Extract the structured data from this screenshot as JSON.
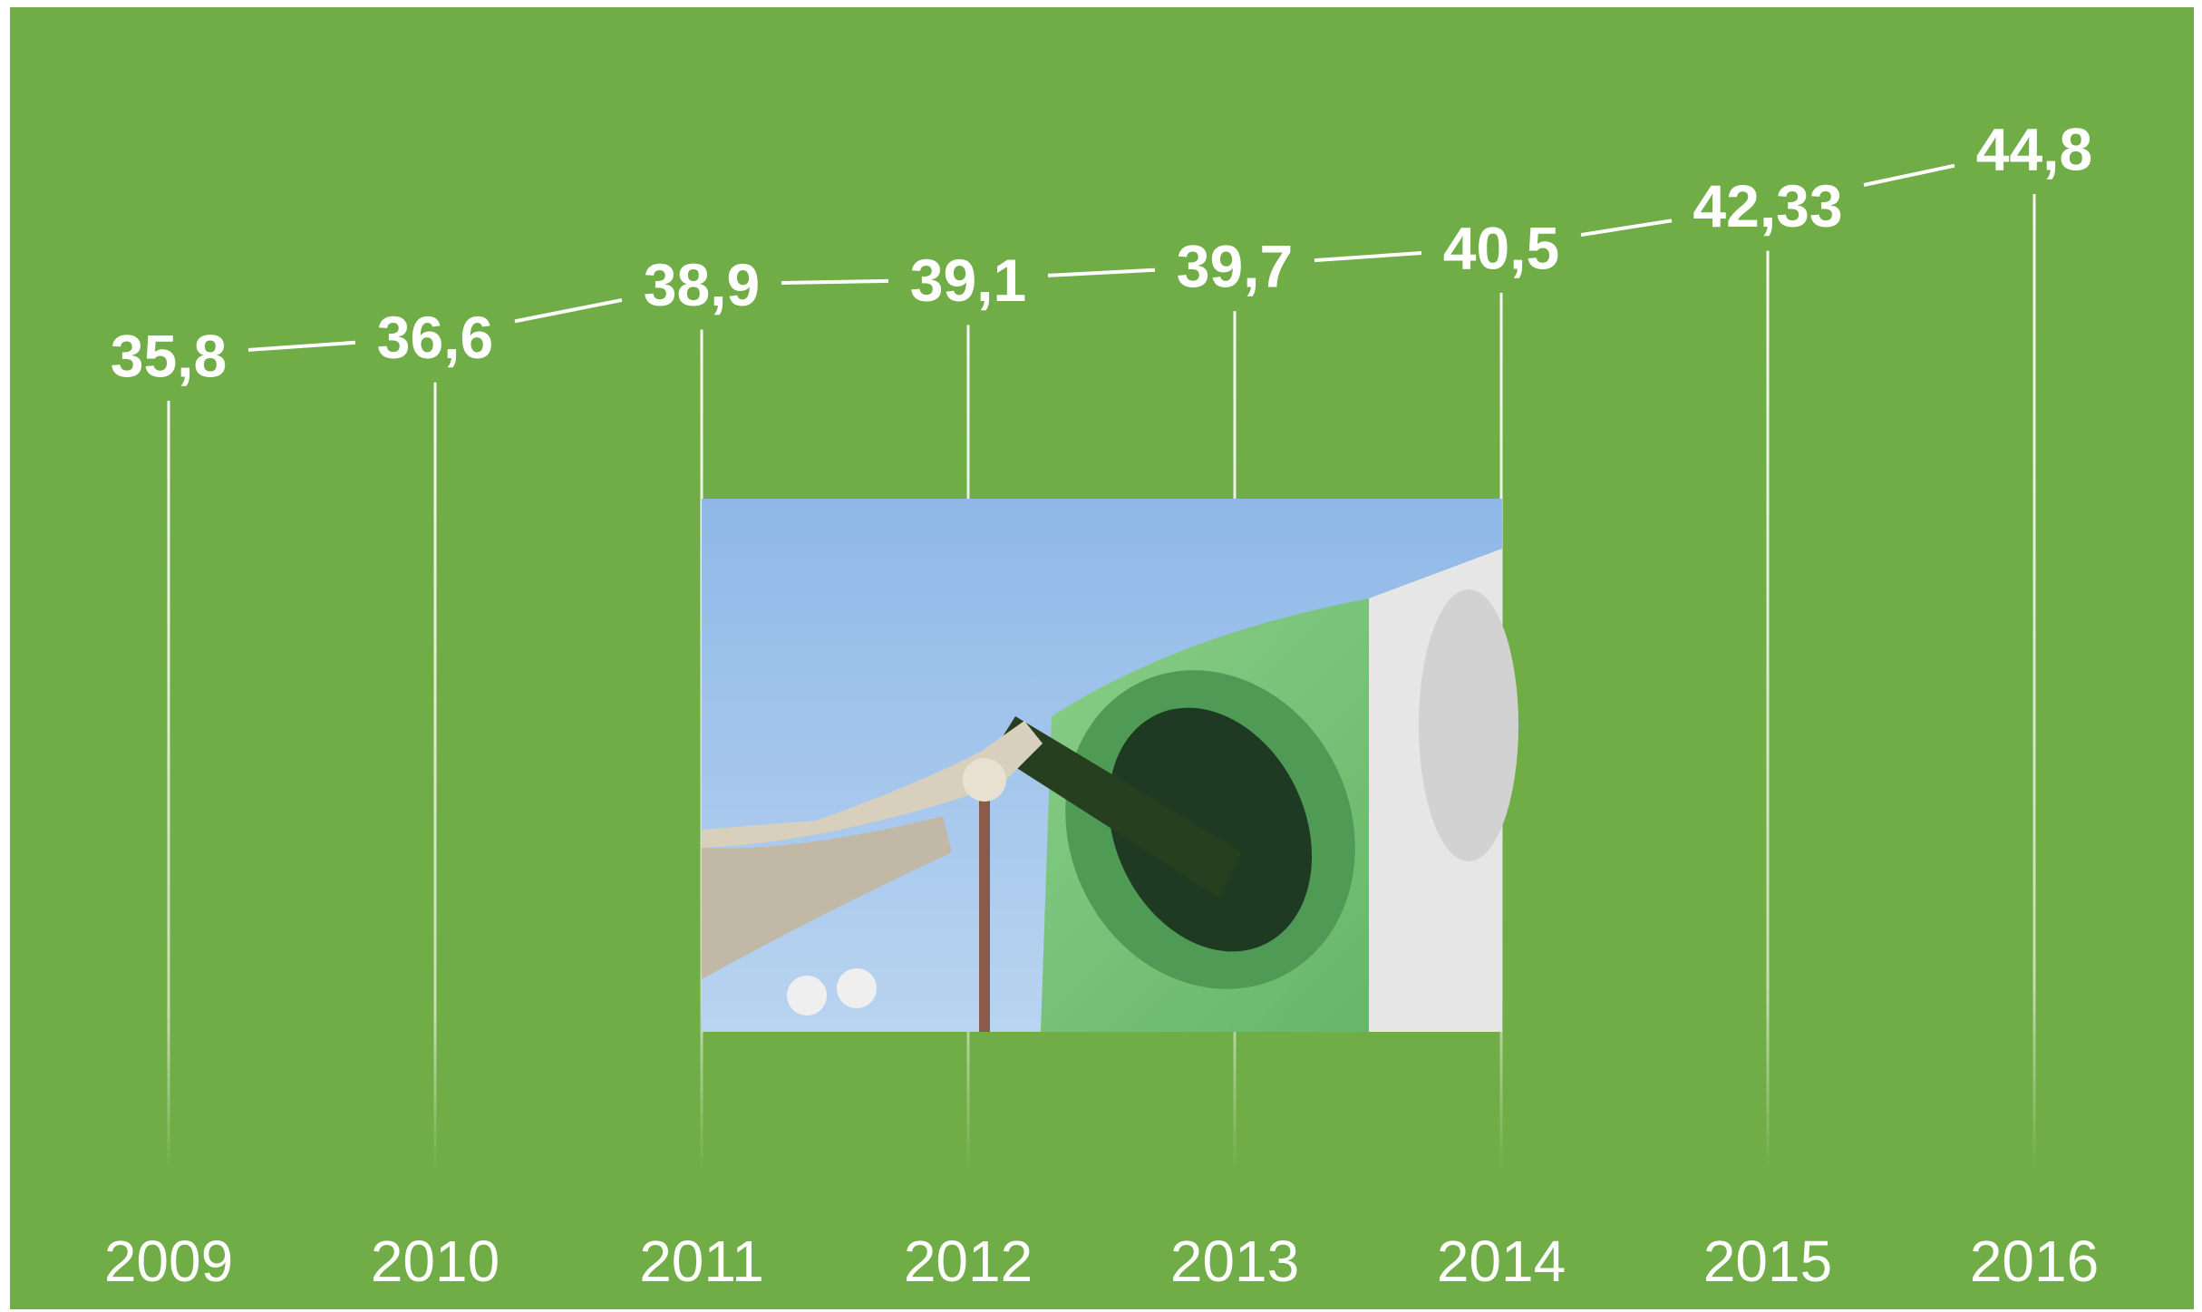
{
  "chart_data": {
    "type": "line",
    "categories": [
      "2009",
      "2010",
      "2011",
      "2012",
      "2013",
      "2014",
      "2015",
      "2016"
    ],
    "values": [
      35.8,
      36.6,
      38.9,
      39.1,
      39.7,
      40.5,
      42.33,
      44.8
    ],
    "value_labels": [
      "35,8",
      "36,6",
      "38,9",
      "39,1",
      "39,7",
      "40,5",
      "42,33",
      "44,8"
    ],
    "color": "#ffffff",
    "background": "#70ad47"
  }
}
